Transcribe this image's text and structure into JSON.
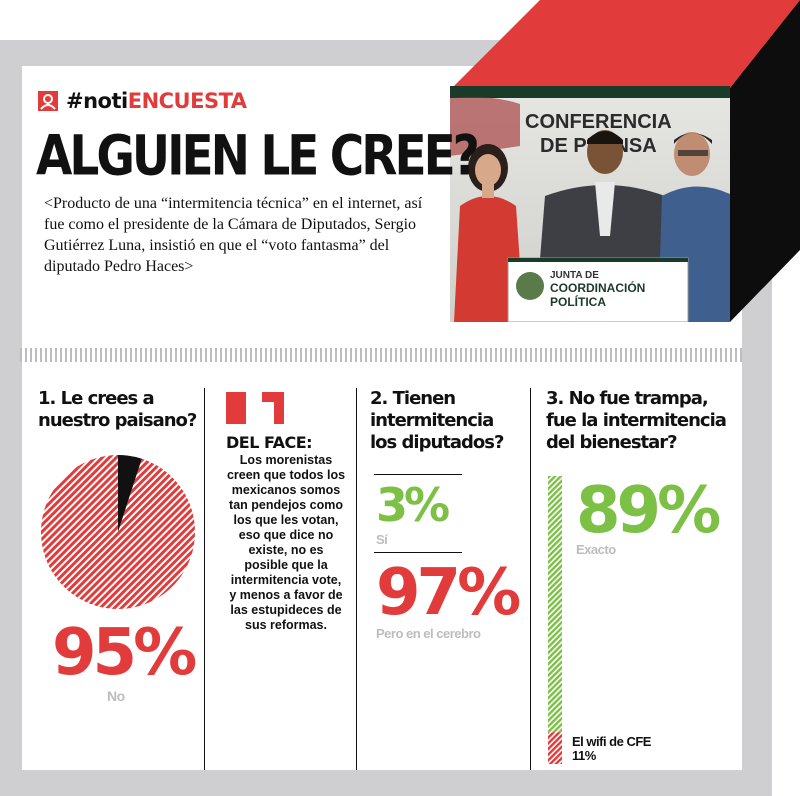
{
  "brand": {
    "hashtag_prefix": "#noti",
    "hashtag_suffix": "ENCUESTA"
  },
  "headline": "ALGUIEN LE CREE?",
  "intro": "<Producto de una “intermitencia técnica” en el internet, así fue como el presidente de la Cámara de Diputados, Sergio Gutiérrez Luna, insistió en que el “voto fantasma” del diputado Pedro Haces>",
  "photo": {
    "banner_line1": "CONFERENCIA",
    "banner_line2": "DE PRENSA",
    "podium_line1": "JUNTA DE",
    "podium_line2": "COORDINACIÓN",
    "podium_line3": "POLÍTICA"
  },
  "q1": {
    "title": "1. Le crees a nuestro paisano?",
    "pct": "95%",
    "label": "No"
  },
  "face": {
    "title": "DEL FACE:",
    "body": "Los morenistas creen que todos los mexicanos somos tan pendejos como los que les votan, eso que dice no existe, no es posible que la intermitencia vote, y menos a favor de las estupideces de sus reformas."
  },
  "q2": {
    "title": "2. Tienen intermitencia los diputados?",
    "a_pct": "3%",
    "a_label": "Sí",
    "b_pct": "97%",
    "b_label": "Pero en el cerebro"
  },
  "q3": {
    "title": "3. No fue trampa, fue la intermitencia del bienestar?",
    "a_pct": "89%",
    "a_label": "Exacto",
    "b_label": "El wifi de CFE",
    "b_pct": "11%"
  },
  "chart_data": [
    {
      "type": "pie",
      "categories": [
        "No",
        ""
      ],
      "values": [
        95,
        5
      ]
    },
    {
      "type": "bar",
      "categories": [
        "Sí",
        "Pero en el cerebro"
      ],
      "values": [
        3,
        97
      ]
    },
    {
      "type": "bar",
      "categories": [
        "Exacto",
        "El wifi de CFE"
      ],
      "values": [
        89,
        11
      ]
    }
  ],
  "colors": {
    "red": "#e23b3b",
    "green": "#7cc046",
    "dark": "#111111",
    "gray": "#cfcfd1"
  }
}
